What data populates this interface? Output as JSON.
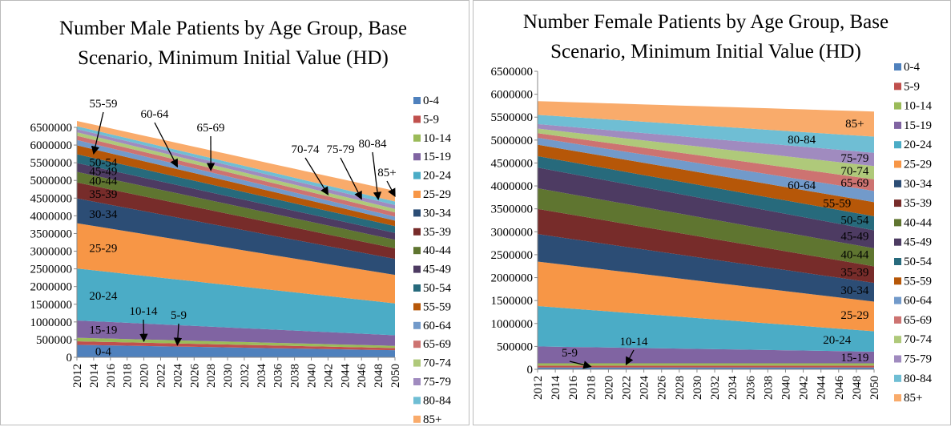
{
  "chart_data": [
    {
      "type": "stacked_area",
      "title": "Number Male Patients by Age Group, Base Scenario, Minimum Initial Value (HD)",
      "x": [
        2012,
        2014,
        2016,
        2018,
        2020,
        2022,
        2024,
        2026,
        2028,
        2030,
        2032,
        2034,
        2036,
        2038,
        2040,
        2042,
        2044,
        2046,
        2048,
        2050
      ],
      "ylim": [
        0,
        6500000
      ],
      "yticks": [
        0,
        500000,
        1000000,
        1500000,
        2000000,
        2500000,
        3000000,
        3500000,
        4000000,
        4500000,
        5000000,
        5500000,
        6000000,
        6500000
      ],
      "legend": "right",
      "series": [
        {
          "name": "0-4",
          "color": "#4F81BD",
          "values": [
            352000,
            344000,
            336000,
            328000,
            320000,
            312000,
            304000,
            296000,
            288000,
            280000,
            272000,
            264000,
            256000,
            248000,
            240000,
            232000,
            224000,
            216000,
            208000,
            200000
          ]
        },
        {
          "name": "5-9",
          "color": "#C0504D",
          "values": [
            100000,
            98000,
            96000,
            94000,
            92000,
            90000,
            88000,
            86000,
            84000,
            82000,
            80000,
            78000,
            76000,
            74000,
            72000,
            70000,
            68000,
            66000,
            64000,
            62000
          ]
        },
        {
          "name": "10-14",
          "color": "#9BBB59",
          "values": [
            100000,
            98000,
            96000,
            94000,
            92000,
            90000,
            88000,
            86000,
            84000,
            82000,
            80000,
            78000,
            76000,
            74000,
            72000,
            70000,
            68000,
            66000,
            64000,
            62000
          ]
        },
        {
          "name": "15-19",
          "color": "#8064A2",
          "values": [
            490000,
            480000,
            470000,
            460000,
            450000,
            440000,
            430000,
            420000,
            410000,
            400000,
            390000,
            380000,
            370000,
            360000,
            350000,
            340000,
            330000,
            320000,
            310000,
            300000
          ]
        },
        {
          "name": "20-24",
          "color": "#4BACC6",
          "values": [
            1470000,
            1440000,
            1410000,
            1380000,
            1350000,
            1320000,
            1290000,
            1260000,
            1230000,
            1200000,
            1170000,
            1140000,
            1110000,
            1080000,
            1050000,
            1020000,
            990000,
            960000,
            930000,
            900000
          ]
        },
        {
          "name": "25-29",
          "color": "#F79646",
          "values": [
            1280000,
            1255000,
            1230000,
            1205000,
            1180000,
            1155000,
            1130000,
            1105000,
            1080000,
            1055000,
            1030000,
            1005000,
            980000,
            955000,
            930000,
            905000,
            880000,
            855000,
            830000,
            805000
          ]
        },
        {
          "name": "30-34",
          "color": "#2C4D75",
          "values": [
            700000,
            687000,
            674000,
            661000,
            648000,
            635000,
            622000,
            609000,
            596000,
            583000,
            570000,
            557000,
            544000,
            531000,
            518000,
            505000,
            492000,
            479000,
            466000,
            453000
          ]
        },
        {
          "name": "35-39",
          "color": "#772C2A",
          "values": [
            450000,
            442000,
            434000,
            426000,
            418000,
            410000,
            402000,
            394000,
            386000,
            378000,
            370000,
            362000,
            354000,
            346000,
            338000,
            330000,
            322000,
            314000,
            306000,
            298000
          ]
        },
        {
          "name": "40-44",
          "color": "#5F7530",
          "values": [
            300000,
            297000,
            294000,
            291000,
            288000,
            285000,
            282000,
            279000,
            276000,
            273000,
            270000,
            267000,
            264000,
            261000,
            258000,
            255000,
            252000,
            249000,
            246000,
            243000
          ]
        },
        {
          "name": "45-49",
          "color": "#4D3B62",
          "values": [
            250000,
            247000,
            244000,
            241000,
            238000,
            235000,
            232000,
            229000,
            226000,
            223000,
            220000,
            217000,
            214000,
            211000,
            208000,
            205000,
            202000,
            199000,
            196000,
            193000
          ]
        },
        {
          "name": "50-54",
          "color": "#276A7C",
          "values": [
            250000,
            247000,
            244000,
            241000,
            238000,
            235000,
            232000,
            229000,
            226000,
            223000,
            220000,
            217000,
            214000,
            211000,
            208000,
            205000,
            202000,
            199000,
            196000,
            193000
          ]
        },
        {
          "name": "55-59",
          "color": "#B65708",
          "values": [
            250000,
            245000,
            240000,
            235000,
            230000,
            225000,
            220000,
            215000,
            210000,
            205000,
            200000,
            195000,
            190000,
            185000,
            180000,
            175000,
            170000,
            165000,
            160000,
            155000
          ]
        },
        {
          "name": "60-64",
          "color": "#729ACA",
          "values": [
            150000,
            148000,
            146000,
            144000,
            142000,
            140000,
            138000,
            136000,
            134000,
            132000,
            130000,
            128000,
            126000,
            124000,
            122000,
            120000,
            118000,
            116000,
            114000,
            112000
          ]
        },
        {
          "name": "65-69",
          "color": "#CD7371",
          "values": [
            120000,
            120000,
            120000,
            120000,
            120000,
            120000,
            120000,
            120000,
            120000,
            120000,
            120000,
            120000,
            120000,
            120000,
            120000,
            120000,
            120000,
            120000,
            120000,
            120000
          ]
        },
        {
          "name": "70-74",
          "color": "#AFC97A",
          "values": [
            100000,
            100000,
            100000,
            100000,
            100000,
            100000,
            100000,
            100000,
            100000,
            100000,
            100000,
            100000,
            100000,
            100000,
            100000,
            100000,
            100000,
            100000,
            100000,
            100000
          ]
        },
        {
          "name": "75-79",
          "color": "#A08BBF",
          "values": [
            90000,
            91000,
            92000,
            93000,
            94000,
            95000,
            96000,
            97000,
            98000,
            99000,
            100000,
            101000,
            102000,
            103000,
            104000,
            105000,
            106000,
            107000,
            108000,
            109000
          ]
        },
        {
          "name": "80-84",
          "color": "#6FBED4",
          "values": [
            80000,
            81000,
            82000,
            83000,
            84000,
            85000,
            86000,
            87000,
            88000,
            89000,
            90000,
            91000,
            92000,
            93000,
            94000,
            95000,
            96000,
            97000,
            98000,
            99000
          ]
        },
        {
          "name": "85+",
          "color": "#F9AB6B",
          "values": [
            150000,
            158000,
            166000,
            174000,
            182000,
            190000,
            198000,
            206000,
            214000,
            222000,
            230000,
            238000,
            246000,
            254000,
            262000,
            270000,
            278000,
            286000,
            294000,
            302000
          ]
        }
      ]
    },
    {
      "type": "stacked_area",
      "title": "Number Female Patients by Age Group, Base Scenario, Minimum Initial Value (HD)",
      "x": [
        2012,
        2014,
        2016,
        2018,
        2020,
        2022,
        2024,
        2026,
        2028,
        2030,
        2032,
        2034,
        2036,
        2038,
        2040,
        2042,
        2044,
        2046,
        2048,
        2050
      ],
      "ylim": [
        0,
        6500000
      ],
      "yticks": [
        0,
        500000,
        1000000,
        1500000,
        2000000,
        2500000,
        3000000,
        3500000,
        4000000,
        4500000,
        5000000,
        5500000,
        6000000,
        6500000
      ],
      "legend": "right",
      "series": [
        {
          "name": "0-4",
          "color": "#4F81BD",
          "values": [
            40000,
            40000,
            40000,
            40000,
            40000,
            40000,
            40000,
            40000,
            40000,
            40000,
            40000,
            40000,
            40000,
            40000,
            40000,
            40000,
            40000,
            40000,
            40000,
            40000
          ]
        },
        {
          "name": "5-9",
          "color": "#C0504D",
          "values": [
            40000,
            40000,
            40000,
            40000,
            40000,
            40000,
            40000,
            40000,
            40000,
            40000,
            40000,
            40000,
            40000,
            40000,
            40000,
            40000,
            40000,
            40000,
            40000,
            40000
          ]
        },
        {
          "name": "10-14",
          "color": "#9BBB59",
          "values": [
            50000,
            50000,
            50000,
            50000,
            50000,
            50000,
            50000,
            50000,
            50000,
            50000,
            50000,
            50000,
            50000,
            50000,
            50000,
            50000,
            50000,
            50000,
            50000,
            50000
          ]
        },
        {
          "name": "15-19",
          "color": "#8064A2",
          "values": [
            370000,
            364000,
            358000,
            352000,
            346000,
            340000,
            334000,
            328000,
            322000,
            316000,
            310000,
            304000,
            298000,
            292000,
            286000,
            280000,
            274000,
            268000,
            262000,
            256000
          ]
        },
        {
          "name": "20-24",
          "color": "#4BACC6",
          "values": [
            880000,
            857000,
            834000,
            811000,
            788000,
            765000,
            742000,
            719000,
            696000,
            673000,
            650000,
            627000,
            604000,
            581000,
            558000,
            535000,
            512000,
            489000,
            466000,
            443000
          ]
        },
        {
          "name": "25-29",
          "color": "#F79646",
          "values": [
            970000,
            953000,
            936000,
            919000,
            902000,
            885000,
            868000,
            851000,
            834000,
            817000,
            800000,
            783000,
            766000,
            749000,
            732000,
            715000,
            698000,
            681000,
            664000,
            647000
          ]
        },
        {
          "name": "30-34",
          "color": "#2C4D75",
          "values": [
            600000,
            590000,
            580000,
            570000,
            560000,
            550000,
            540000,
            530000,
            520000,
            510000,
            500000,
            490000,
            480000,
            470000,
            460000,
            450000,
            440000,
            430000,
            420000,
            410000
          ]
        },
        {
          "name": "35-39",
          "color": "#772C2A",
          "values": [
            550000,
            540000,
            530000,
            520000,
            510000,
            500000,
            490000,
            480000,
            470000,
            460000,
            450000,
            440000,
            430000,
            420000,
            410000,
            400000,
            390000,
            380000,
            370000,
            360000
          ]
        },
        {
          "name": "40-44",
          "color": "#5F7530",
          "values": [
            450000,
            447000,
            444000,
            441000,
            438000,
            435000,
            432000,
            429000,
            426000,
            423000,
            420000,
            417000,
            414000,
            411000,
            408000,
            405000,
            402000,
            399000,
            396000,
            393000
          ]
        },
        {
          "name": "45-49",
          "color": "#4D3B62",
          "values": [
            450000,
            447000,
            444000,
            441000,
            438000,
            435000,
            432000,
            429000,
            426000,
            423000,
            420000,
            417000,
            414000,
            411000,
            408000,
            405000,
            402000,
            399000,
            396000,
            393000
          ]
        },
        {
          "name": "50-54",
          "color": "#276A7C",
          "values": [
            250000,
            253000,
            256000,
            259000,
            262000,
            265000,
            268000,
            271000,
            274000,
            277000,
            280000,
            283000,
            286000,
            289000,
            292000,
            295000,
            298000,
            301000,
            304000,
            307000
          ]
        },
        {
          "name": "55-59",
          "color": "#B65708",
          "values": [
            250000,
            253000,
            256000,
            259000,
            262000,
            265000,
            268000,
            271000,
            274000,
            277000,
            280000,
            283000,
            286000,
            289000,
            292000,
            295000,
            298000,
            301000,
            304000,
            307000
          ]
        },
        {
          "name": "60-64",
          "color": "#729ACA",
          "values": [
            150000,
            155000,
            160000,
            165000,
            170000,
            175000,
            180000,
            185000,
            190000,
            195000,
            200000,
            205000,
            210000,
            215000,
            220000,
            225000,
            230000,
            235000,
            240000,
            245000
          ]
        },
        {
          "name": "65-69",
          "color": "#CD7371",
          "values": [
            100000,
            108000,
            116000,
            124000,
            132000,
            140000,
            148000,
            156000,
            164000,
            172000,
            180000,
            188000,
            196000,
            204000,
            212000,
            220000,
            228000,
            236000,
            244000,
            252000
          ]
        },
        {
          "name": "70-74",
          "color": "#AFC97A",
          "values": [
            100000,
            110000,
            120000,
            130000,
            140000,
            150000,
            160000,
            170000,
            180000,
            190000,
            200000,
            210000,
            220000,
            230000,
            240000,
            250000,
            260000,
            270000,
            280000,
            290000
          ]
        },
        {
          "name": "75-79",
          "color": "#A08BBF",
          "values": [
            100000,
            110000,
            120000,
            130000,
            140000,
            150000,
            160000,
            170000,
            180000,
            190000,
            200000,
            210000,
            220000,
            230000,
            240000,
            250000,
            260000,
            270000,
            280000,
            290000
          ]
        },
        {
          "name": "80-84",
          "color": "#6FBED4",
          "values": [
            200000,
            208000,
            216000,
            224000,
            232000,
            240000,
            248000,
            256000,
            264000,
            272000,
            280000,
            288000,
            296000,
            304000,
            312000,
            320000,
            328000,
            336000,
            344000,
            352000
          ]
        },
        {
          "name": "85+",
          "color": "#F9AB6B",
          "values": [
            300000,
            313000,
            326000,
            339000,
            352000,
            365000,
            378000,
            391000,
            404000,
            417000,
            430000,
            443000,
            456000,
            469000,
            482000,
            495000,
            508000,
            521000,
            534000,
            547000
          ]
        }
      ]
    }
  ]
}
